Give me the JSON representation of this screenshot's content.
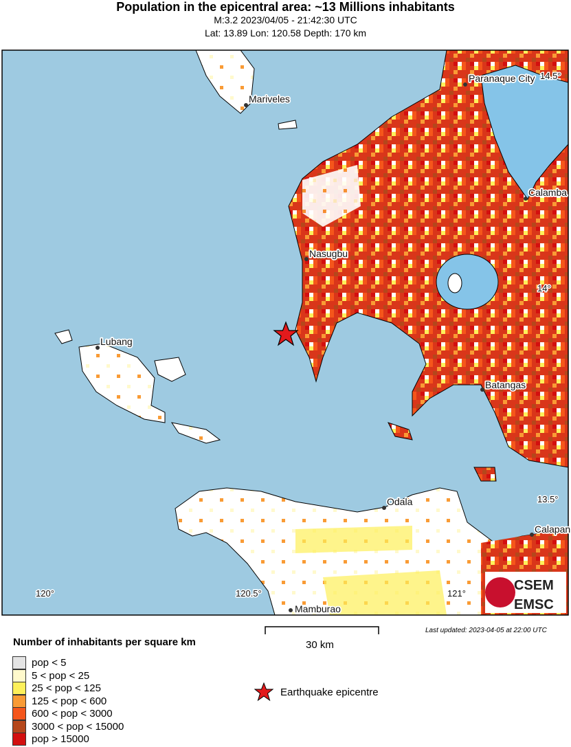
{
  "header": {
    "title": "Population in the epicentral area: ~13 Millions inhabitants",
    "event": "M:3.2 2023/04/05 - 21:42:30 UTC",
    "location": "Lat: 13.89 Lon: 120.58 Depth: 170 km"
  },
  "map": {
    "colors": {
      "sea": "#9ecae1",
      "lake": "#85c4e8",
      "land_low": "#ffffff"
    },
    "cities": [
      "Mariveles",
      "Paranaque City",
      "Calamba",
      "Nasugbu",
      "Lubang",
      "Batangas",
      "Odala",
      "Calapan",
      "Mamburao"
    ],
    "lat_ticks": [
      "14.5°",
      "14°",
      "13.5°"
    ],
    "lon_ticks": [
      "120°",
      "120.5°",
      "121°"
    ],
    "epicentre": {
      "lat": 13.89,
      "lon": 120.58
    },
    "logo": {
      "top": "CSEM",
      "bottom": "EMSC"
    }
  },
  "scale_bar": {
    "label": "30 km"
  },
  "last_updated": "Last updated: 2023-04-05 at 22:00 UTC",
  "legend": {
    "title": "Number of inhabitants per square km",
    "items": [
      {
        "label": "pop < 5",
        "color": "#e4e4e4"
      },
      {
        "label": "5 < pop < 25",
        "color": "#fff9cc"
      },
      {
        "label": "25 < pop < 125",
        "color": "#fdf05a"
      },
      {
        "label": "125 < pop < 600",
        "color": "#f99b35"
      },
      {
        "label": "600 < pop < 3000",
        "color": "#f5561b"
      },
      {
        "label": "3000 < pop < 15000",
        "color": "#b5471b"
      },
      {
        "label": "pop > 15000",
        "color": "#d30f0f"
      }
    ],
    "epicentre_label": "Earthquake epicentre"
  }
}
